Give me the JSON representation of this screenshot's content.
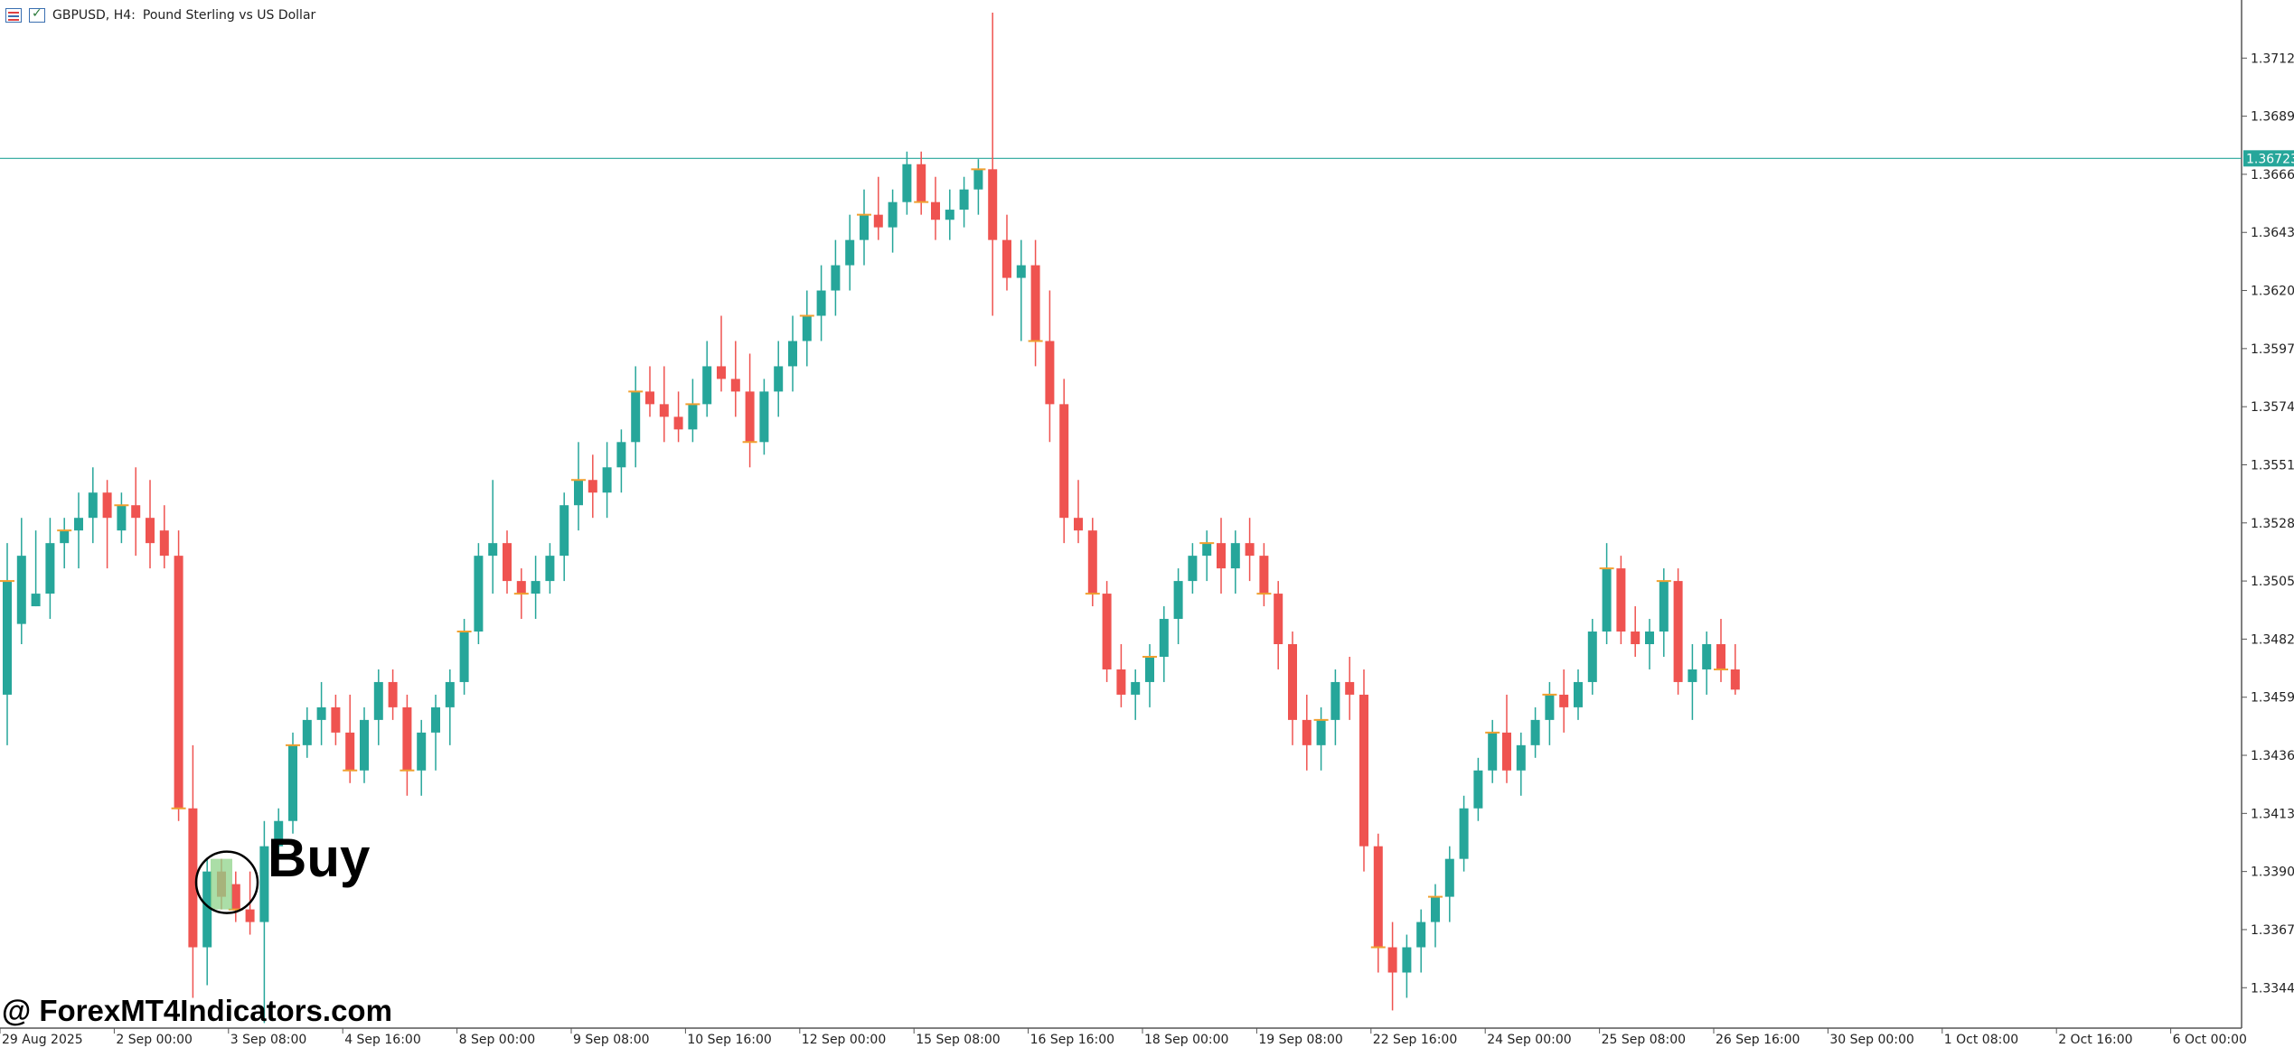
{
  "header": {
    "symbol": "GBPUSD, H4:",
    "description": "Pound Sterling vs US Dollar",
    "icons": [
      "list-icon",
      "checkbox-icon"
    ]
  },
  "watermark": "@ ForexMT4Indicators.com",
  "signal": {
    "label": "Buy",
    "candle_index": 15
  },
  "colors": {
    "bull": "#26a69a",
    "bear": "#ef5350",
    "box": "#8fd38a",
    "level": "#f0a030",
    "price_line": "#26a69a",
    "axis_text": "#222222"
  },
  "chart_data": {
    "type": "candlestick",
    "symbol": "GBPUSD",
    "timeframe": "H4",
    "ylim": [
      1.3328,
      1.3735
    ],
    "y_ticks": [
      "1.37120",
      "1.36890",
      "1.36660",
      "1.36430",
      "1.36200",
      "1.35970",
      "1.35740",
      "1.35510",
      "1.35280",
      "1.35050",
      "1.34820",
      "1.34590",
      "1.34360",
      "1.34130",
      "1.33900",
      "1.33670",
      "1.33440"
    ],
    "current_price": "1.36723",
    "x_ticks": [
      "29 Aug 2025",
      "2 Sep 00:00",
      "3 Sep 08:00",
      "4 Sep 16:00",
      "8 Sep 00:00",
      "9 Sep 08:00",
      "10 Sep 16:00",
      "12 Sep 00:00",
      "15 Sep 08:00",
      "16 Sep 16:00",
      "18 Sep 00:00",
      "19 Sep 08:00",
      "22 Sep 16:00",
      "24 Sep 00:00",
      "25 Sep 08:00",
      "26 Sep 16:00",
      "30 Sep 00:00",
      "1 Oct 08:00",
      "2 Oct 16:00",
      "6 Oct 00:00"
    ],
    "x_tick_candle_index": [
      0,
      8,
      16,
      24,
      32,
      40,
      48,
      56,
      64,
      72,
      80,
      88,
      96,
      104,
      112,
      120,
      128,
      136,
      144,
      152
    ],
    "candles": [
      [
        1.346,
        1.352,
        1.344,
        1.3505
      ],
      [
        1.3488,
        1.353,
        1.348,
        1.3515
      ],
      [
        1.3495,
        1.3525,
        1.3495,
        1.35
      ],
      [
        1.35,
        1.353,
        1.349,
        1.352
      ],
      [
        1.352,
        1.353,
        1.351,
        1.3525
      ],
      [
        1.3525,
        1.354,
        1.351,
        1.353
      ],
      [
        1.353,
        1.355,
        1.352,
        1.354
      ],
      [
        1.354,
        1.3545,
        1.351,
        1.353
      ],
      [
        1.3525,
        1.354,
        1.352,
        1.3535
      ],
      [
        1.3535,
        1.355,
        1.3515,
        1.353
      ],
      [
        1.353,
        1.3545,
        1.351,
        1.352
      ],
      [
        1.3525,
        1.3535,
        1.351,
        1.3515
      ],
      [
        1.3515,
        1.3525,
        1.341,
        1.3415
      ],
      [
        1.3415,
        1.344,
        1.334,
        1.336
      ],
      [
        1.336,
        1.3395,
        1.3345,
        1.339
      ],
      [
        1.339,
        1.3395,
        1.3375,
        1.338
      ],
      [
        1.3385,
        1.339,
        1.337,
        1.3375
      ],
      [
        1.3375,
        1.339,
        1.3365,
        1.337
      ],
      [
        1.337,
        1.341,
        1.333,
        1.34
      ],
      [
        1.34,
        1.3415,
        1.3395,
        1.341
      ],
      [
        1.341,
        1.3445,
        1.3405,
        1.344
      ],
      [
        1.344,
        1.3455,
        1.3435,
        1.345
      ],
      [
        1.345,
        1.3465,
        1.344,
        1.3455
      ],
      [
        1.3455,
        1.346,
        1.344,
        1.3445
      ],
      [
        1.3445,
        1.346,
        1.3425,
        1.343
      ],
      [
        1.343,
        1.3455,
        1.3425,
        1.345
      ],
      [
        1.345,
        1.347,
        1.344,
        1.3465
      ],
      [
        1.3465,
        1.347,
        1.345,
        1.3455
      ],
      [
        1.3455,
        1.346,
        1.342,
        1.343
      ],
      [
        1.343,
        1.345,
        1.342,
        1.3445
      ],
      [
        1.3445,
        1.346,
        1.343,
        1.3455
      ],
      [
        1.3455,
        1.347,
        1.344,
        1.3465
      ],
      [
        1.3465,
        1.349,
        1.346,
        1.3485
      ],
      [
        1.3485,
        1.352,
        1.348,
        1.3515
      ],
      [
        1.3515,
        1.3545,
        1.35,
        1.352
      ],
      [
        1.352,
        1.3525,
        1.35,
        1.3505
      ],
      [
        1.3505,
        1.351,
        1.349,
        1.35
      ],
      [
        1.35,
        1.3515,
        1.349,
        1.3505
      ],
      [
        1.3505,
        1.352,
        1.35,
        1.3515
      ],
      [
        1.3515,
        1.354,
        1.3505,
        1.3535
      ],
      [
        1.3535,
        1.356,
        1.3525,
        1.3545
      ],
      [
        1.3545,
        1.3555,
        1.353,
        1.354
      ],
      [
        1.354,
        1.356,
        1.353,
        1.355
      ],
      [
        1.355,
        1.3565,
        1.354,
        1.356
      ],
      [
        1.356,
        1.359,
        1.355,
        1.358
      ],
      [
        1.358,
        1.359,
        1.357,
        1.3575
      ],
      [
        1.3575,
        1.359,
        1.356,
        1.357
      ],
      [
        1.357,
        1.358,
        1.356,
        1.3565
      ],
      [
        1.3565,
        1.3585,
        1.356,
        1.3575
      ],
      [
        1.3575,
        1.36,
        1.357,
        1.359
      ],
      [
        1.359,
        1.361,
        1.358,
        1.3585
      ],
      [
        1.3585,
        1.36,
        1.357,
        1.358
      ],
      [
        1.358,
        1.3595,
        1.355,
        1.356
      ],
      [
        1.356,
        1.3585,
        1.3555,
        1.358
      ],
      [
        1.358,
        1.36,
        1.357,
        1.359
      ],
      [
        1.359,
        1.361,
        1.358,
        1.36
      ],
      [
        1.36,
        1.362,
        1.359,
        1.361
      ],
      [
        1.361,
        1.363,
        1.36,
        1.362
      ],
      [
        1.362,
        1.364,
        1.361,
        1.363
      ],
      [
        1.363,
        1.365,
        1.362,
        1.364
      ],
      [
        1.364,
        1.366,
        1.363,
        1.365
      ],
      [
        1.365,
        1.3665,
        1.364,
        1.3645
      ],
      [
        1.3645,
        1.366,
        1.3635,
        1.3655
      ],
      [
        1.3655,
        1.3675,
        1.365,
        1.367
      ],
      [
        1.367,
        1.3675,
        1.365,
        1.3655
      ],
      [
        1.3655,
        1.3665,
        1.364,
        1.3648
      ],
      [
        1.3648,
        1.366,
        1.364,
        1.3652
      ],
      [
        1.3652,
        1.3665,
        1.3645,
        1.366
      ],
      [
        1.366,
        1.3672,
        1.365,
        1.3668
      ],
      [
        1.3668,
        1.373,
        1.361,
        1.364
      ],
      [
        1.364,
        1.365,
        1.362,
        1.3625
      ],
      [
        1.3625,
        1.364,
        1.36,
        1.363
      ],
      [
        1.363,
        1.364,
        1.359,
        1.36
      ],
      [
        1.36,
        1.362,
        1.356,
        1.3575
      ],
      [
        1.3575,
        1.3585,
        1.352,
        1.353
      ],
      [
        1.353,
        1.3545,
        1.352,
        1.3525
      ],
      [
        1.3525,
        1.353,
        1.3495,
        1.35
      ],
      [
        1.35,
        1.3505,
        1.3465,
        1.347
      ],
      [
        1.347,
        1.348,
        1.3455,
        1.346
      ],
      [
        1.346,
        1.347,
        1.345,
        1.3465
      ],
      [
        1.3465,
        1.348,
        1.3455,
        1.3475
      ],
      [
        1.3475,
        1.3495,
        1.3465,
        1.349
      ],
      [
        1.349,
        1.351,
        1.348,
        1.3505
      ],
      [
        1.3505,
        1.352,
        1.35,
        1.3515
      ],
      [
        1.3515,
        1.3525,
        1.3505,
        1.352
      ],
      [
        1.352,
        1.353,
        1.35,
        1.351
      ],
      [
        1.351,
        1.3525,
        1.35,
        1.352
      ],
      [
        1.352,
        1.353,
        1.3505,
        1.3515
      ],
      [
        1.3515,
        1.352,
        1.3495,
        1.35
      ],
      [
        1.35,
        1.3505,
        1.347,
        1.348
      ],
      [
        1.348,
        1.3485,
        1.344,
        1.345
      ],
      [
        1.345,
        1.346,
        1.343,
        1.344
      ],
      [
        1.344,
        1.3455,
        1.343,
        1.345
      ],
      [
        1.345,
        1.347,
        1.344,
        1.3465
      ],
      [
        1.3465,
        1.3475,
        1.345,
        1.346
      ],
      [
        1.346,
        1.347,
        1.339,
        1.34
      ],
      [
        1.34,
        1.3405,
        1.335,
        1.336
      ],
      [
        1.336,
        1.337,
        1.3335,
        1.335
      ],
      [
        1.335,
        1.3365,
        1.334,
        1.336
      ],
      [
        1.336,
        1.3375,
        1.335,
        1.337
      ],
      [
        1.337,
        1.3385,
        1.336,
        1.338
      ],
      [
        1.338,
        1.34,
        1.337,
        1.3395
      ],
      [
        1.3395,
        1.342,
        1.339,
        1.3415
      ],
      [
        1.3415,
        1.3435,
        1.341,
        1.343
      ],
      [
        1.343,
        1.345,
        1.3425,
        1.3445
      ],
      [
        1.3445,
        1.346,
        1.3425,
        1.343
      ],
      [
        1.343,
        1.3445,
        1.342,
        1.344
      ],
      [
        1.344,
        1.3455,
        1.3435,
        1.345
      ],
      [
        1.345,
        1.3465,
        1.344,
        1.346
      ],
      [
        1.346,
        1.347,
        1.3445,
        1.3455
      ],
      [
        1.3455,
        1.347,
        1.345,
        1.3465
      ],
      [
        1.3465,
        1.349,
        1.346,
        1.3485
      ],
      [
        1.3485,
        1.352,
        1.348,
        1.351
      ],
      [
        1.351,
        1.3515,
        1.348,
        1.3485
      ],
      [
        1.3485,
        1.3495,
        1.3475,
        1.348
      ],
      [
        1.348,
        1.349,
        1.347,
        1.3485
      ],
      [
        1.3485,
        1.351,
        1.3475,
        1.3505
      ],
      [
        1.3505,
        1.351,
        1.346,
        1.3465
      ],
      [
        1.3465,
        1.348,
        1.345,
        1.347
      ],
      [
        1.347,
        1.3485,
        1.346,
        1.348
      ],
      [
        1.348,
        1.349,
        1.3465,
        1.347
      ],
      [
        1.347,
        1.348,
        1.346,
        1.3462
      ]
    ]
  }
}
